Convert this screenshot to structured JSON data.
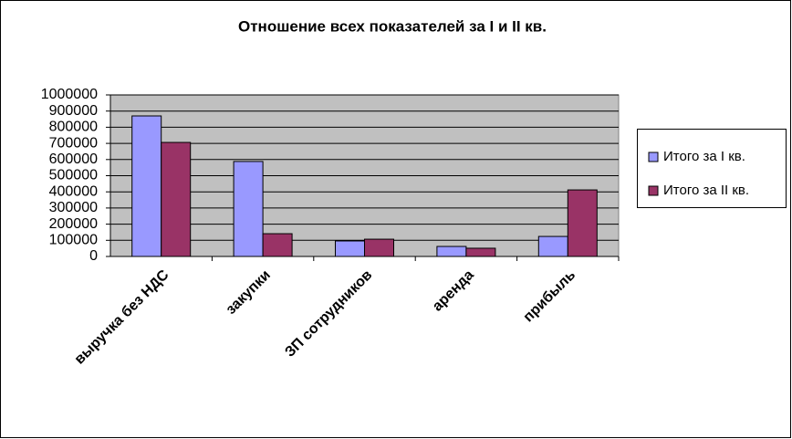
{
  "chart_data": {
    "type": "bar",
    "title": "Отношение всех показателей за I и II кв.",
    "categories": [
      "выручка без НДС",
      "закупки",
      "ЗП сотрудников",
      "аренда",
      "прибыль"
    ],
    "series": [
      {
        "name": "Итого за I кв.",
        "color": "#9999ff",
        "values": [
          870000,
          588000,
          96000,
          62000,
          124000
        ]
      },
      {
        "name": "Итого за II кв.",
        "color": "#993366",
        "values": [
          706000,
          141000,
          107000,
          51000,
          412000
        ]
      }
    ],
    "ylim": [
      0,
      1000000
    ],
    "yticks": [
      0,
      100000,
      200000,
      300000,
      400000,
      500000,
      600000,
      700000,
      800000,
      900000,
      1000000
    ],
    "grid": true,
    "legend": "right"
  }
}
